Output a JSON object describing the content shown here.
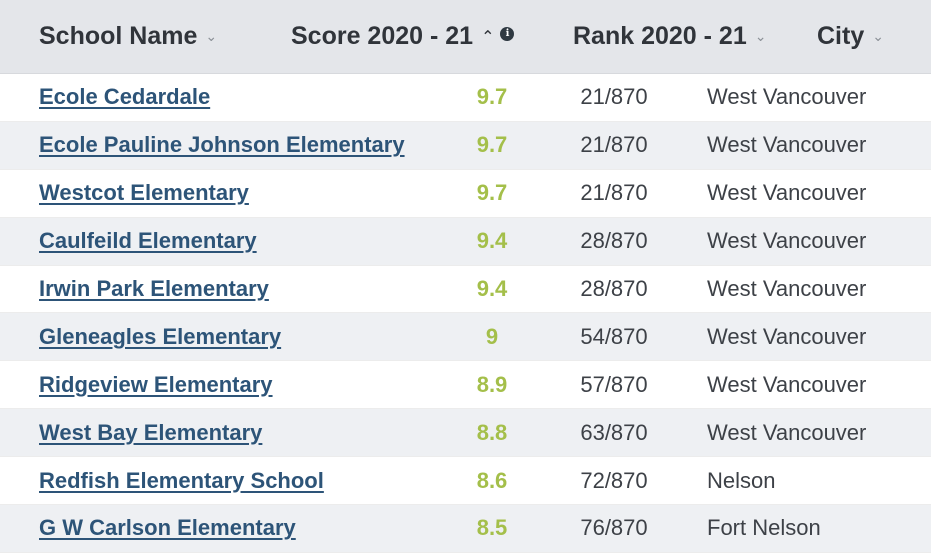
{
  "columns": {
    "name": "School Name",
    "score": "Score 2020 - 21",
    "rank": "Rank 2020 - 21",
    "city": "City",
    "score_sort_icon": "chevron-up-icon",
    "sort_icon": "chevron-down-icon",
    "info_icon": "info-icon"
  },
  "rows": [
    {
      "name": "Ecole Cedardale",
      "score": "9.7",
      "rank": "21/870",
      "city": "West Vancouver"
    },
    {
      "name": "Ecole Pauline Johnson Elementary",
      "score": "9.7",
      "rank": "21/870",
      "city": "West Vancouver"
    },
    {
      "name": "Westcot Elementary",
      "score": "9.7",
      "rank": "21/870",
      "city": "West Vancouver"
    },
    {
      "name": "Caulfeild Elementary",
      "score": "9.4",
      "rank": "28/870",
      "city": "West Vancouver"
    },
    {
      "name": "Irwin Park Elementary",
      "score": "9.4",
      "rank": "28/870",
      "city": "West Vancouver"
    },
    {
      "name": "Gleneagles Elementary",
      "score": "9",
      "rank": "54/870",
      "city": "West Vancouver"
    },
    {
      "name": "Ridgeview Elementary",
      "score": "8.9",
      "rank": "57/870",
      "city": "West Vancouver"
    },
    {
      "name": "West Bay Elementary",
      "score": "8.8",
      "rank": "63/870",
      "city": "West Vancouver"
    },
    {
      "name": "Redfish Elementary School",
      "score": "8.6",
      "rank": "72/870",
      "city": "Nelson"
    },
    {
      "name": "G W Carlson Elementary",
      "score": "8.5",
      "rank": "76/870",
      "city": "Fort Nelson"
    }
  ],
  "colors": {
    "header_bg": "#e4e6ea",
    "link": "#2d5478",
    "score": "#a4bf4a",
    "stripe": "#eef0f3"
  }
}
